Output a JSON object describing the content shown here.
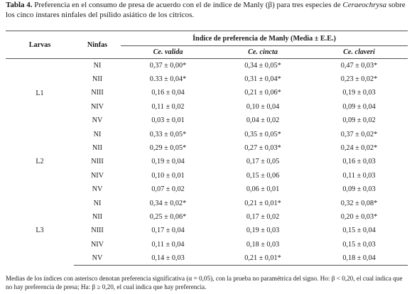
{
  "caption": {
    "label": "Tabla 4.",
    "text_before": " Preferencia en el consumo de presa de acuerdo con el de índice de Manly (β) para tres especies de ",
    "genus": "Ceraeochrysa",
    "text_after": " sobre los cinco ínstares ninfales del psílido asiático de los cítricos."
  },
  "table": {
    "col_larvas": "Larvas",
    "col_ninfas": "Ninfas",
    "group_header": "Índice de preferencia de Manly (Media ± E.E.)",
    "species": [
      "Ce. valida",
      "Ce. cincta",
      "Ce. claveri"
    ],
    "groups": [
      {
        "larva": "L1",
        "rows": [
          {
            "ninfa": "NI",
            "values": [
              "0,37 ± 0,00*",
              "0,34 ± 0,05*",
              "0,47 ± 0,03*"
            ]
          },
          {
            "ninfa": "NII",
            "values": [
              "0.33 ± 0,04*",
              "0,31 ± 0,04*",
              "0,23 ± 0,02*"
            ]
          },
          {
            "ninfa": "NIII",
            "values": [
              "0,16 ± 0,04",
              "0,21 ± 0,06*",
              "0,19 ± 0,03"
            ]
          },
          {
            "ninfa": "NIV",
            "values": [
              "0,11 ± 0,02",
              "0,10 ± 0,04",
              "0,09 ± 0,04"
            ]
          },
          {
            "ninfa": "NV",
            "values": [
              "0,03 ± 0,01",
              "0,04 ± 0,02",
              "0,09 ± 0,02"
            ]
          }
        ]
      },
      {
        "larva": "L2",
        "rows": [
          {
            "ninfa": "NI",
            "values": [
              "0,33 ± 0,05*",
              "0,35 ± 0,05*",
              "0,37 ± 0,02*"
            ]
          },
          {
            "ninfa": "NII",
            "values": [
              "0,29 ± 0,05*",
              "0,27 ± 0,03*",
              "0,24 ± 0,02*"
            ]
          },
          {
            "ninfa": "NIII",
            "values": [
              "0,19 ± 0,04",
              "0,17 ± 0,05",
              "0,16 ± 0,03"
            ]
          },
          {
            "ninfa": "NIV",
            "values": [
              "0,10 ± 0,01",
              "0,15 ± 0,06",
              "0,11 ± 0,03"
            ]
          },
          {
            "ninfa": "NV",
            "values": [
              "0,07 ± 0,02",
              "0,06 ± 0,01",
              "0,09 ± 0,03"
            ]
          }
        ]
      },
      {
        "larva": "L3",
        "rows": [
          {
            "ninfa": "NI",
            "values": [
              "0,34 ± 0,02*",
              "0,21 ± 0,01*",
              "0,32 ± 0,08*"
            ]
          },
          {
            "ninfa": "NII",
            "values": [
              "0,25 ± 0,06*",
              "0,17 ± 0,02",
              "0,20 ± 0,03*"
            ]
          },
          {
            "ninfa": "NIII",
            "values": [
              "0,17 ± 0,04",
              "0,19 ± 0,03",
              "0,15 ± 0,04"
            ]
          },
          {
            "ninfa": "NIV",
            "values": [
              "0,11 ± 0,04",
              "0,18 ± 0,03",
              "0,15 ± 0,03"
            ]
          },
          {
            "ninfa": "NV",
            "values": [
              "0,14 ± 0,03",
              "0,21 ± 0,01*",
              "0,18 ± 0,04"
            ]
          }
        ]
      }
    ]
  },
  "footnote": "Medias de los índices con asterisco denotan preferencia significativa (α = 0,05), con la prueba no paramétrica del signo. Ho: β < 0,20, el cual indica que no hay preferencia de presa; Ha: β ≥ 0,20, el cual indica que hay preferencia."
}
